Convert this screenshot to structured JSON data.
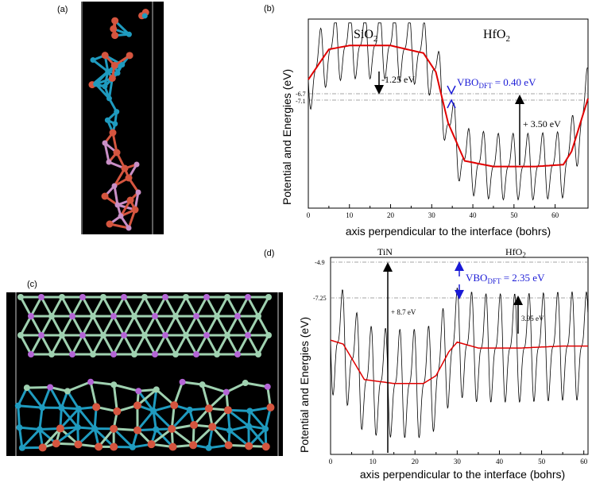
{
  "figure": {
    "panel_labels": {
      "a": "(a)",
      "b": "(b)",
      "c": "(c)",
      "d": "(d)"
    }
  },
  "atom_colors": {
    "oxygen": "#d5553f",
    "hafnium": "#1f9bbf",
    "silicon": "#c98fc6",
    "titanium": "#9fd1b0",
    "nitrogen": "#b465d6",
    "background": "#000000"
  },
  "panel_b": {
    "ylabel": "Potential and Energies (eV)",
    "xlabel": "axis perpendicular to the interface (bohrs)",
    "region_left": "SiO",
    "region_left_sub": "2",
    "region_right": "HfO",
    "region_right_sub": "2",
    "level_a_label": "-6.7",
    "level_b_label": "-7.1",
    "arrow1_label": "-1.25 eV",
    "arrow2_label": "+ 3.50 eV",
    "vbo_main": "VBO",
    "vbo_sub": "DFT",
    "vbo_value": " = 0.40 eV",
    "vbo_color": "#1a1ad6"
  },
  "panel_d": {
    "ylabel": "Potential and Energies (eV)",
    "xlabel": "axis perpendicular to the interface (bohrs)",
    "region_left": "TiN",
    "region_right": "HfO",
    "region_right_sub": "2",
    "level_a_label": "-4.9",
    "level_b_label": "-7.25",
    "arrow1_label": "+ 8.7 eV",
    "arrow2_label": "3.95 eV",
    "vbo_main": "VBO",
    "vbo_sub": "DFT",
    "vbo_value": " = 2.35 eV",
    "vbo_color": "#1a1ad6"
  },
  "chart_data": [
    {
      "type": "line",
      "panel": "b",
      "xlabel": "axis perpendicular to the interface (bohrs)",
      "ylabel": "Potential and Energies (eV)",
      "xlim": [
        0,
        68
      ],
      "xticks": [
        "0",
        "10",
        "20",
        "30",
        "40",
        "50",
        "60"
      ],
      "ytick_labels": [
        "-6.7",
        "-7.1"
      ],
      "series": [
        {
          "color": "#000000",
          "description_values": "oscillating planar-averaged potential"
        },
        {
          "color": "#e00000",
          "x": [
            0,
            5,
            10,
            20,
            28,
            31,
            34,
            38,
            45,
            55,
            62,
            64,
            68
          ],
          "y_relative": [
            0.32,
            0.16,
            0.14,
            0.14,
            0.18,
            0.28,
            0.55,
            0.75,
            0.78,
            0.78,
            0.77,
            0.7,
            0.42
          ]
        }
      ],
      "annotations": [
        "SiO2",
        "HfO2",
        "-1.25 eV",
        "+ 3.50 eV",
        "VBO_DFT = 0.40 eV"
      ]
    },
    {
      "type": "line",
      "panel": "d",
      "xlabel": "axis perpendicular to the interface (bohrs)",
      "ylabel": "Potential and Energies (eV)",
      "xlim": [
        0,
        61
      ],
      "xticks": [
        "0",
        "10",
        "20",
        "30",
        "40",
        "50",
        "60"
      ],
      "ytick_labels": [
        "-4.9",
        "-7.25"
      ],
      "series": [
        {
          "color": "#000000",
          "description_values": "oscillating planar-averaged potential"
        },
        {
          "color": "#e00000",
          "x": [
            0,
            3,
            8,
            15,
            22,
            25,
            28,
            30,
            35,
            45,
            55,
            61
          ],
          "y_relative": [
            0.42,
            0.44,
            0.62,
            0.64,
            0.64,
            0.6,
            0.48,
            0.43,
            0.46,
            0.46,
            0.45,
            0.45
          ]
        }
      ],
      "annotations": [
        "TiN",
        "HfO2",
        "+ 8.7 eV",
        "3.95 eV",
        "VBO_DFT = 2.35 eV"
      ]
    }
  ]
}
